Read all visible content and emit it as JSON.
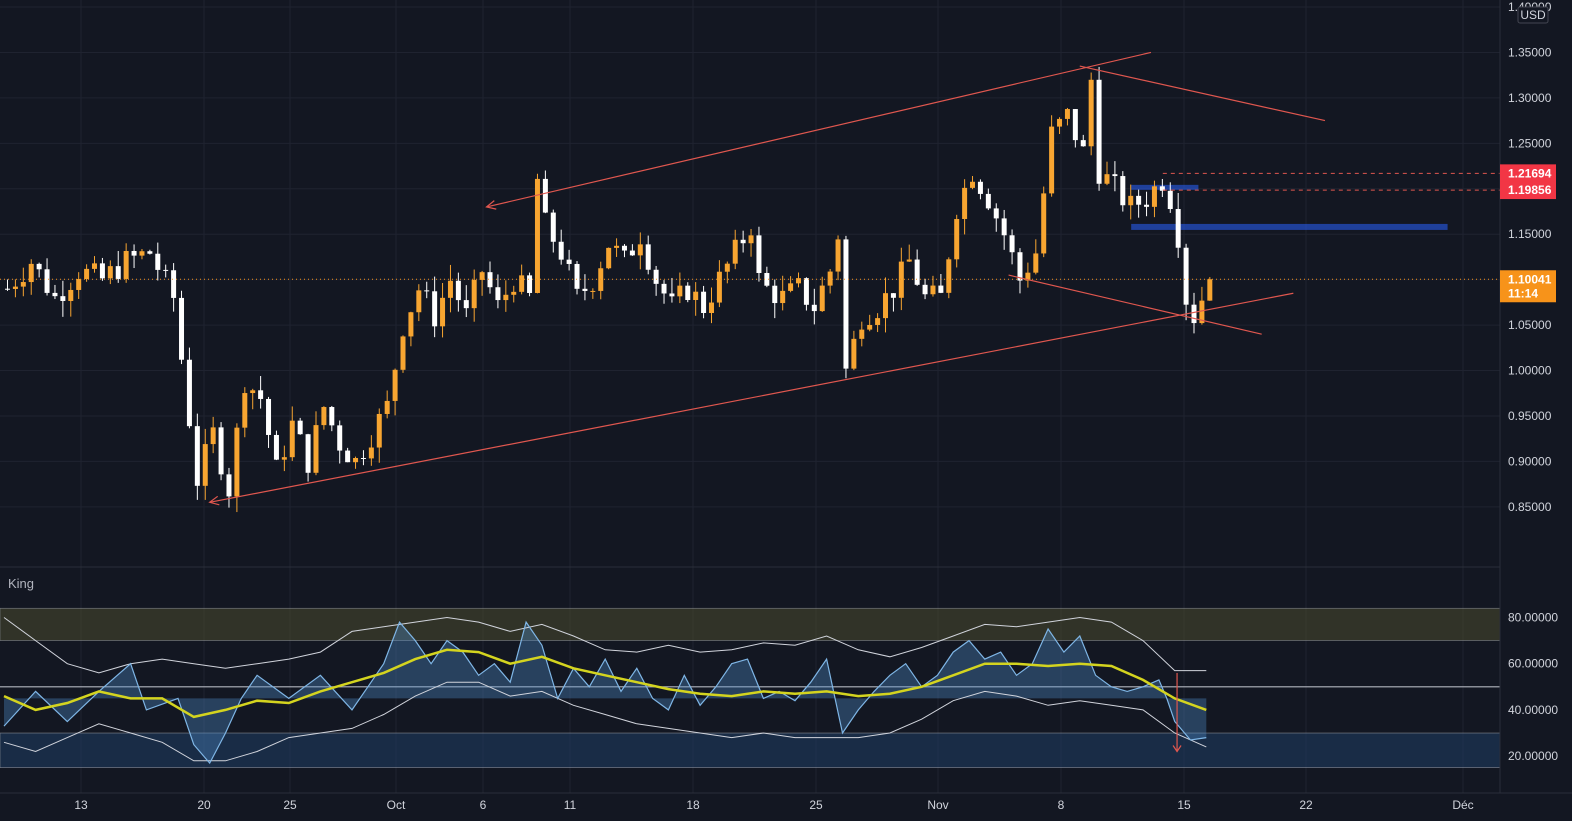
{
  "chart_data": {
    "type": "candlestick",
    "currency": "USD",
    "price_axis": {
      "range": [
        0.83,
        1.4
      ],
      "ticks": [
        "1.40000",
        "1.35000",
        "1.30000",
        "1.25000",
        "1.20000",
        "1.15000",
        "1.10000",
        "1.05000",
        "1.00000",
        "0.95000",
        "0.90000",
        "0.85000"
      ]
    },
    "time_axis": {
      "ticks": [
        "13",
        "20",
        "25",
        "Oct",
        "6",
        "11",
        "18",
        "25",
        "Nov",
        "8",
        "15",
        "22",
        "Déc"
      ]
    },
    "price_badges": [
      {
        "value": "1.21694",
        "color": "#f23645"
      },
      {
        "value": "1.19856",
        "color": "#f23645"
      },
      {
        "value": "1.10041",
        "sub": "11:14",
        "color": "#f7931a"
      }
    ],
    "current_price": 1.10041,
    "price_path": [
      [
        0,
        1.09
      ],
      [
        3,
        1.12
      ],
      [
        6,
        1.08
      ],
      [
        9,
        1.11
      ],
      [
        12,
        1.1
      ],
      [
        15,
        1.12
      ],
      [
        18,
        1.13
      ],
      [
        21,
        1.08
      ],
      [
        24,
        0.88
      ],
      [
        26,
        0.93
      ],
      [
        28,
        0.87
      ],
      [
        30,
        0.99
      ],
      [
        32,
        0.97
      ],
      [
        34,
        0.89
      ],
      [
        36,
        0.94
      ],
      [
        38,
        0.9
      ],
      [
        40,
        0.96
      ],
      [
        42,
        0.92
      ],
      [
        44,
        0.9
      ],
      [
        46,
        0.93
      ],
      [
        48,
        0.96
      ],
      [
        50,
        1.05
      ],
      [
        52,
        1.09
      ],
      [
        54,
        1.06
      ],
      [
        56,
        1.1
      ],
      [
        58,
        1.06
      ],
      [
        60,
        1.11
      ],
      [
        62,
        1.07
      ],
      [
        64,
        1.1
      ],
      [
        66,
        1.08
      ],
      [
        67,
        1.21
      ],
      [
        68,
        1.16
      ],
      [
        70,
        1.13
      ],
      [
        72,
        1.08
      ],
      [
        74,
        1.1
      ],
      [
        76,
        1.14
      ],
      [
        78,
        1.12
      ],
      [
        80,
        1.15
      ],
      [
        82,
        1.1
      ],
      [
        84,
        1.07
      ],
      [
        86,
        1.09
      ],
      [
        88,
        1.07
      ],
      [
        90,
        1.1
      ],
      [
        92,
        1.13
      ],
      [
        94,
        1.16
      ],
      [
        95,
        1.1
      ],
      [
        96,
        1.09
      ],
      [
        98,
        1.08
      ],
      [
        100,
        1.09
      ],
      [
        102,
        1.07
      ],
      [
        104,
        1.11
      ],
      [
        105,
        1.15
      ],
      [
        106,
        1.0
      ],
      [
        108,
        1.06
      ],
      [
        110,
        1.07
      ],
      [
        112,
        1.09
      ],
      [
        114,
        1.12
      ],
      [
        116,
        1.08
      ],
      [
        118,
        1.08
      ],
      [
        120,
        1.18
      ],
      [
        122,
        1.22
      ],
      [
        124,
        1.19
      ],
      [
        126,
        1.15
      ],
      [
        128,
        1.1
      ],
      [
        130,
        1.13
      ],
      [
        132,
        1.26
      ],
      [
        134,
        1.28
      ],
      [
        136,
        1.24
      ],
      [
        137,
        1.32
      ],
      [
        138,
        1.22
      ],
      [
        140,
        1.2
      ],
      [
        142,
        1.18
      ],
      [
        144,
        1.19
      ],
      [
        146,
        1.21
      ],
      [
        147,
        1.19
      ],
      [
        148,
        1.15
      ],
      [
        149,
        1.08
      ],
      [
        150,
        1.06
      ],
      [
        151,
        1.08
      ],
      [
        152,
        1.1
      ]
    ],
    "total_bars": 153,
    "drawings": {
      "trendlines": [
        {
          "from": [
            26,
            0.855
          ],
          "to": [
            163,
            1.085
          ]
        },
        {
          "from": [
            61,
            1.18
          ],
          "to": [
            145,
            1.35
          ]
        },
        {
          "from": [
            136,
            1.335
          ],
          "to": [
            167,
            1.275
          ]
        },
        {
          "from": [
            127,
            1.105
          ],
          "to": [
            159,
            1.04
          ]
        }
      ],
      "levels": [
        {
          "price": 1.21694,
          "style": "dashed"
        },
        {
          "price": 1.19856,
          "style": "dashed"
        }
      ],
      "zones": [
        {
          "price": 1.201
        },
        {
          "price": 1.158
        }
      ]
    },
    "indicator": {
      "name": "King",
      "axis": {
        "range": [
          14,
          88
        ],
        "ticks": [
          "80.00000",
          "60.00000",
          "40.00000",
          "20.00000"
        ]
      },
      "mid_line": 50,
      "upper_zone": [
        70,
        84
      ],
      "lower_zone": [
        15,
        30
      ],
      "oscillator": [
        [
          0,
          33
        ],
        [
          4,
          48
        ],
        [
          8,
          35
        ],
        [
          12,
          48
        ],
        [
          16,
          60
        ],
        [
          18,
          40
        ],
        [
          22,
          45
        ],
        [
          24,
          25
        ],
        [
          26,
          17
        ],
        [
          28,
          30
        ],
        [
          30,
          45
        ],
        [
          32,
          55
        ],
        [
          36,
          45
        ],
        [
          40,
          55
        ],
        [
          44,
          40
        ],
        [
          46,
          50
        ],
        [
          48,
          60
        ],
        [
          50,
          78
        ],
        [
          52,
          70
        ],
        [
          54,
          60
        ],
        [
          56,
          70
        ],
        [
          58,
          65
        ],
        [
          60,
          55
        ],
        [
          62,
          60
        ],
        [
          64,
          52
        ],
        [
          66,
          78
        ],
        [
          68,
          68
        ],
        [
          70,
          45
        ],
        [
          72,
          58
        ],
        [
          74,
          50
        ],
        [
          76,
          62
        ],
        [
          78,
          48
        ],
        [
          80,
          58
        ],
        [
          82,
          45
        ],
        [
          84,
          40
        ],
        [
          86,
          55
        ],
        [
          88,
          42
        ],
        [
          90,
          50
        ],
        [
          92,
          60
        ],
        [
          94,
          62
        ],
        [
          96,
          45
        ],
        [
          98,
          48
        ],
        [
          100,
          44
        ],
        [
          102,
          52
        ],
        [
          104,
          62
        ],
        [
          106,
          30
        ],
        [
          108,
          40
        ],
        [
          110,
          48
        ],
        [
          112,
          55
        ],
        [
          114,
          60
        ],
        [
          116,
          50
        ],
        [
          118,
          55
        ],
        [
          120,
          65
        ],
        [
          122,
          70
        ],
        [
          124,
          62
        ],
        [
          126,
          65
        ],
        [
          128,
          55
        ],
        [
          130,
          60
        ],
        [
          132,
          75
        ],
        [
          134,
          65
        ],
        [
          136,
          72
        ],
        [
          138,
          55
        ],
        [
          140,
          50
        ],
        [
          142,
          48
        ],
        [
          144,
          50
        ],
        [
          146,
          53
        ],
        [
          147,
          45
        ],
        [
          148,
          35
        ],
        [
          150,
          27
        ],
        [
          152,
          28
        ]
      ],
      "signal": [
        [
          0,
          46
        ],
        [
          4,
          40
        ],
        [
          8,
          43
        ],
        [
          12,
          48
        ],
        [
          16,
          45
        ],
        [
          20,
          45
        ],
        [
          24,
          37
        ],
        [
          28,
          40
        ],
        [
          32,
          44
        ],
        [
          36,
          43
        ],
        [
          40,
          48
        ],
        [
          44,
          52
        ],
        [
          48,
          56
        ],
        [
          52,
          62
        ],
        [
          56,
          66
        ],
        [
          60,
          65
        ],
        [
          64,
          60
        ],
        [
          68,
          63
        ],
        [
          72,
          58
        ],
        [
          76,
          55
        ],
        [
          80,
          52
        ],
        [
          84,
          49
        ],
        [
          88,
          47
        ],
        [
          92,
          46
        ],
        [
          96,
          48
        ],
        [
          100,
          47
        ],
        [
          104,
          48
        ],
        [
          108,
          46
        ],
        [
          112,
          47
        ],
        [
          116,
          50
        ],
        [
          120,
          55
        ],
        [
          124,
          60
        ],
        [
          128,
          60
        ],
        [
          132,
          59
        ],
        [
          136,
          60
        ],
        [
          140,
          59
        ],
        [
          144,
          53
        ],
        [
          148,
          45
        ],
        [
          152,
          40
        ]
      ],
      "band_upper": [
        [
          0,
          80
        ],
        [
          4,
          70
        ],
        [
          8,
          60
        ],
        [
          12,
          56
        ],
        [
          16,
          60
        ],
        [
          20,
          62
        ],
        [
          24,
          60
        ],
        [
          28,
          58
        ],
        [
          32,
          60
        ],
        [
          36,
          62
        ],
        [
          40,
          65
        ],
        [
          44,
          74
        ],
        [
          48,
          76
        ],
        [
          52,
          78
        ],
        [
          56,
          80
        ],
        [
          60,
          78
        ],
        [
          64,
          74
        ],
        [
          68,
          77
        ],
        [
          72,
          72
        ],
        [
          76,
          66
        ],
        [
          80,
          65
        ],
        [
          84,
          68
        ],
        [
          88,
          65
        ],
        [
          92,
          66
        ],
        [
          96,
          69
        ],
        [
          100,
          68
        ],
        [
          104,
          72
        ],
        [
          108,
          66
        ],
        [
          112,
          63
        ],
        [
          116,
          67
        ],
        [
          120,
          72
        ],
        [
          124,
          77
        ],
        [
          128,
          76
        ],
        [
          132,
          78
        ],
        [
          136,
          80
        ],
        [
          140,
          78
        ],
        [
          144,
          70
        ],
        [
          148,
          57
        ],
        [
          152,
          57
        ]
      ],
      "band_lower": [
        [
          0,
          26
        ],
        [
          4,
          22
        ],
        [
          8,
          28
        ],
        [
          12,
          34
        ],
        [
          16,
          30
        ],
        [
          20,
          26
        ],
        [
          24,
          18
        ],
        [
          28,
          18
        ],
        [
          32,
          22
        ],
        [
          36,
          28
        ],
        [
          40,
          30
        ],
        [
          44,
          32
        ],
        [
          48,
          38
        ],
        [
          52,
          46
        ],
        [
          56,
          52
        ],
        [
          60,
          52
        ],
        [
          64,
          46
        ],
        [
          68,
          48
        ],
        [
          72,
          42
        ],
        [
          76,
          38
        ],
        [
          80,
          34
        ],
        [
          84,
          32
        ],
        [
          88,
          30
        ],
        [
          92,
          28
        ],
        [
          96,
          30
        ],
        [
          100,
          28
        ],
        [
          104,
          28
        ],
        [
          108,
          28
        ],
        [
          112,
          30
        ],
        [
          116,
          36
        ],
        [
          120,
          44
        ],
        [
          124,
          48
        ],
        [
          128,
          46
        ],
        [
          132,
          42
        ],
        [
          136,
          44
        ],
        [
          140,
          42
        ],
        [
          144,
          40
        ],
        [
          148,
          30
        ],
        [
          152,
          24
        ]
      ]
    }
  }
}
